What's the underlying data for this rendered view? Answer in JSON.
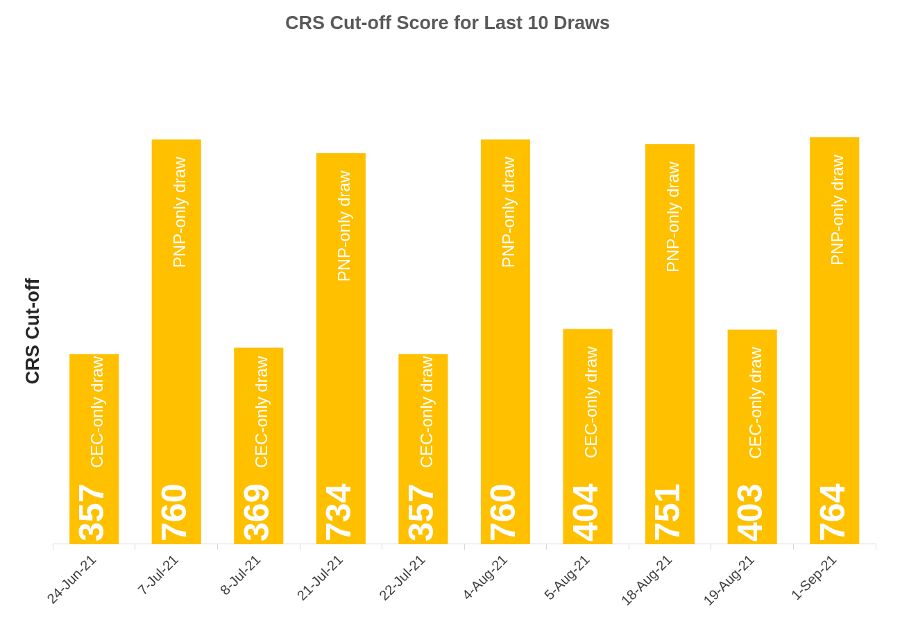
{
  "chart_data": {
    "type": "bar",
    "title": "CRS Cut-off Score for Last 10 Draws",
    "ylabel": "CRS Cut-off",
    "categories": [
      "24-Jun-21",
      "7-Jul-21",
      "8-Jul-21",
      "21-Jul-21",
      "22-Jul-21",
      "4-Aug-21",
      "5-Aug-21",
      "18-Aug-21",
      "19-Aug-21",
      "1-Sep-21"
    ],
    "values": [
      357,
      760,
      369,
      734,
      357,
      760,
      404,
      751,
      403,
      764
    ],
    "color": "#ffc000",
    "data_labels": true,
    "tick_labels": "x",
    "legend": false,
    "annotations": [
      "CEC-only draw",
      "PNP-only draw",
      "CEC-only draw",
      "PNP-only draw",
      "CEC-only draw",
      "PNP-only draw",
      "CEC-only draw",
      "PNP-only draw",
      "CEC-only draw",
      "PNP-only draw"
    ]
  }
}
